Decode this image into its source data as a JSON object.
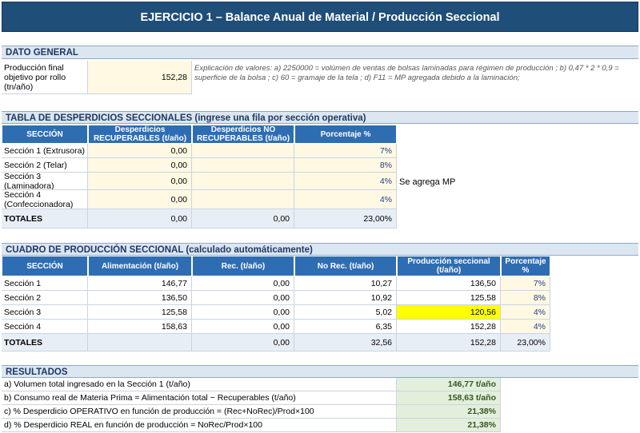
{
  "title": "EJERCICIO 1 – Balance Anual de Material / Producción Seccional",
  "dato_general": {
    "header": "DATO GENERAL",
    "label": "Producción final objetivo por rollo (tn/año)",
    "value": "152,28",
    "note": "Explicación de valores: a) 2250000 = volúmen de ventas de bolsas laminadas para régimen de producción ; b) 0,47 * 2 * 0,9 = superficie de la bolsa ; c) 60 = gramaje de la tela ; d)  F11 = MP agregada debido a la laminación;"
  },
  "desperdicios": {
    "header": "TABLA DE DESPERDICIOS SECCIONALES  (ingrese una fila por sección operativa)",
    "columns": [
      "SECCIÓN",
      "Desperdicios RECUPERABLES (t/año)",
      "Desperdicios NO RECUPERABLES (t/año)",
      "Porcentaje %"
    ],
    "rows": [
      {
        "seccion": "Sección 1 (Extrusora)",
        "rec": "0,00",
        "norec": "",
        "pct": "7%"
      },
      {
        "seccion": "Sección 2 (Telar)",
        "rec": "0,00",
        "norec": "",
        "pct": "8%"
      },
      {
        "seccion": "Sección 3 (Laminadora)",
        "rec": "0,00",
        "norec": "",
        "pct": "4%"
      },
      {
        "seccion": "Sección 4 (Confeccionadora)",
        "rec": "0,00",
        "norec": "",
        "pct": "4%"
      }
    ],
    "side_note": "Se agrega MP",
    "totals": {
      "label": "TOTALES",
      "rec": "0,00",
      "norec": "0,00",
      "pct": "23,00%"
    }
  },
  "produccion": {
    "header": "CUADRO DE PRODUCCIÓN SECCIONAL  (calculado automáticamente)",
    "columns": [
      "SECCIÓN",
      "Alimentación (t/año)",
      "Rec. (t/año)",
      "No Rec. (t/año)",
      "Producción seccional (t/año)",
      "Porcentaje %"
    ],
    "rows": [
      {
        "seccion": "Sección 1",
        "alim": "146,77",
        "rec": "0,00",
        "norec": "10,27",
        "prod": "136,50",
        "pct": "7%"
      },
      {
        "seccion": "Sección 2",
        "alim": "136,50",
        "rec": "0,00",
        "norec": "10,92",
        "prod": "125,58",
        "pct": "8%"
      },
      {
        "seccion": "Sección 3",
        "alim": "125,58",
        "rec": "0,00",
        "norec": "5,02",
        "prod": "120,56",
        "pct": "4%"
      },
      {
        "seccion": "Sección 4",
        "alim": "158,63",
        "rec": "0,00",
        "norec": "6,35",
        "prod": "152,28",
        "pct": "4%"
      }
    ],
    "totals": {
      "label": "TOTALES",
      "alim": "",
      "rec": "0,00",
      "norec": "32,56",
      "prod": "152,28",
      "pct": "23,00%"
    }
  },
  "resultados": {
    "header": "RESULTADOS",
    "rows": [
      {
        "label": "a) Volumen total ingresado en la Sección 1 (t/año)",
        "value": "146,77 t/año"
      },
      {
        "label": "b) Consumo real de Materia Prima  = Alimentación total − Recuperables (t/año)",
        "value": "158,63 t/año"
      },
      {
        "label": "c) % Desperdicio OPERATIVO en función de producción  = (Rec+NoRec)/Prod×100",
        "value": "21,38%"
      },
      {
        "label": "d) % Desperdicio REAL en función de producción  = NoRec/Prod×100",
        "value": "21,38%"
      }
    ]
  },
  "colors": {
    "header_blue": "#2f6db3",
    "title_blue": "#1f4e79",
    "input_yellow": "#fff9e3",
    "highlight_yellow": "#ffff00",
    "result_green": "#e2efda"
  }
}
